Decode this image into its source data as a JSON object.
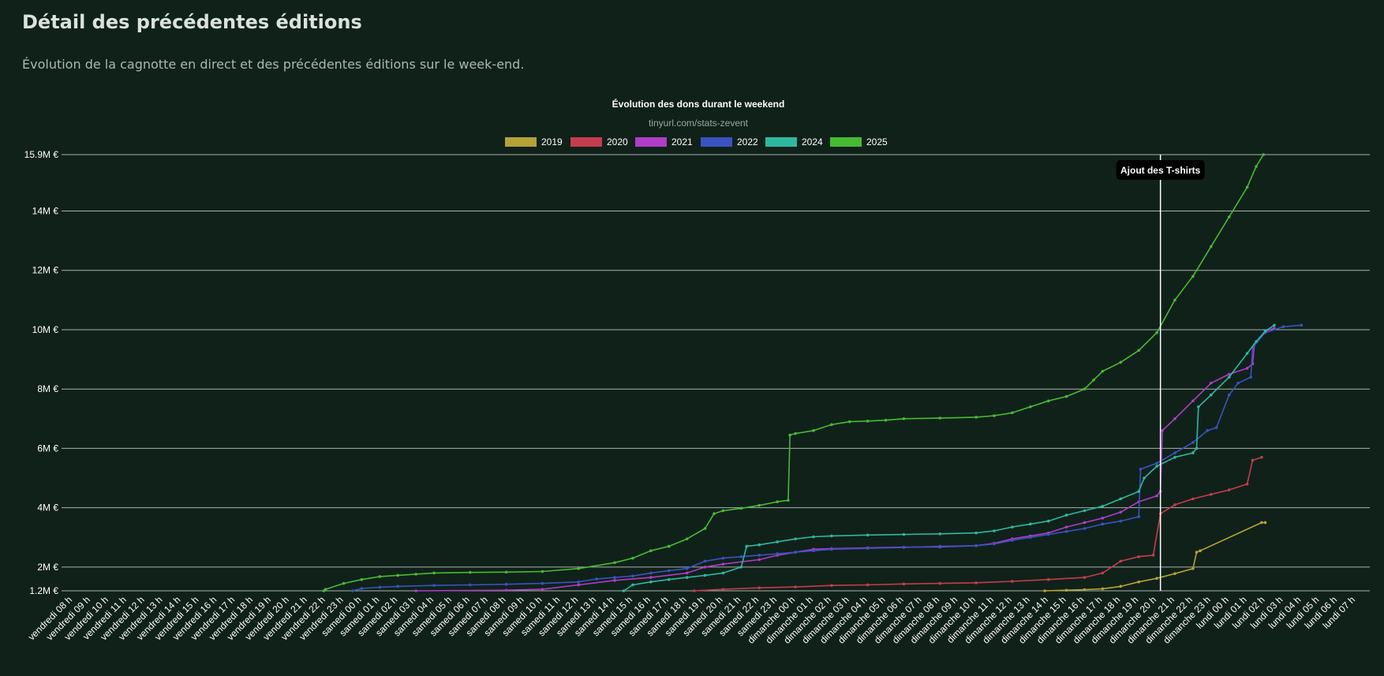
{
  "page": {
    "title": "Détail des précédentes éditions",
    "subtitle": "Évolution de la cagnotte en direct et des précédentes éditions sur le week-end."
  },
  "colors": {
    "background": "#10211a",
    "grid": "#cfd8d3",
    "text": "#ffffff",
    "annotation_line": "#ffffff",
    "annotation_box": "#000000"
  },
  "chart_data": {
    "type": "line",
    "title": "Évolution des dons durant le weekend",
    "subtitle": "tinyurl.com/stats-zevent",
    "legend_position": "top-center",
    "grid": true,
    "ylim": [
      1.2,
      15.9
    ],
    "y_ticks": [
      {
        "value": 1.2,
        "label": "1.2M €"
      },
      {
        "value": 2,
        "label": "2M €"
      },
      {
        "value": 4,
        "label": "4M €"
      },
      {
        "value": 6,
        "label": "6M €"
      },
      {
        "value": 8,
        "label": "8M €"
      },
      {
        "value": 10,
        "label": "10M €"
      },
      {
        "value": 12,
        "label": "12M €"
      },
      {
        "value": 14,
        "label": "14M €"
      },
      {
        "value": 15.9,
        "label": "15.9M €"
      }
    ],
    "x_categories": [
      "vendredi 08 h",
      "vendredi 09 h",
      "vendredi 10 h",
      "vendredi 11 h",
      "vendredi 12 h",
      "vendredi 13 h",
      "vendredi 14 h",
      "vendredi 15 h",
      "vendredi 16 h",
      "vendredi 17 h",
      "vendredi 18 h",
      "vendredi 19 h",
      "vendredi 20 h",
      "vendredi 21 h",
      "vendredi 22 h",
      "vendredi 23 h",
      "samedi 00 h",
      "samedi 01 h",
      "samedi 02 h",
      "samedi 03 h",
      "samedi 04 h",
      "samedi 05 h",
      "samedi 06 h",
      "samedi 07 h",
      "samedi 08 h",
      "samedi 09 h",
      "samedi 10 h",
      "samedi 11 h",
      "samedi 12 h",
      "samedi 13 h",
      "samedi 14 h",
      "samedi 15 h",
      "samedi 16 h",
      "samedi 17 h",
      "samedi 18 h",
      "samedi 19 h",
      "samedi 20 h",
      "samedi 21 h",
      "samedi 22 h",
      "samedi 23 h",
      "dimanche 00 h",
      "dimanche 01 h",
      "dimanche 02 h",
      "dimanche 03 h",
      "dimanche 04 h",
      "dimanche 05 h",
      "dimanche 06 h",
      "dimanche 07 h",
      "dimanche 08 h",
      "dimanche 09 h",
      "dimanche 10 h",
      "dimanche 11 h",
      "dimanche 12 h",
      "dimanche 13 h",
      "dimanche 14 h",
      "dimanche 15 h",
      "dimanche 16 h",
      "dimanche 17 h",
      "dimanche 18 h",
      "dimanche 19 h",
      "dimanche 20 h",
      "dimanche 21 h",
      "dimanche 22 h",
      "dimanche 23 h",
      "lundi 00 h",
      "lundi 01 h",
      "lundi 02 h",
      "lundi 03 h",
      "lundi 04 h",
      "lundi 05 h",
      "lundi 06 h",
      "lundi 07 h"
    ],
    "annotation": {
      "x": 60.2,
      "label": "Ajout des T-shirts"
    },
    "series": [
      {
        "name": "2019",
        "color": "#b5a236",
        "points": [
          [
            53.8,
            1.2
          ],
          [
            55,
            1.22
          ],
          [
            56,
            1.24
          ],
          [
            57,
            1.27
          ],
          [
            58,
            1.35
          ],
          [
            59,
            1.5
          ],
          [
            60,
            1.62
          ],
          [
            61,
            1.78
          ],
          [
            62,
            1.95
          ],
          [
            62.2,
            2.5
          ],
          [
            62.4,
            2.55
          ],
          [
            65.8,
            3.5
          ],
          [
            66,
            3.5
          ]
        ]
      },
      {
        "name": "2020",
        "color": "#c43c4f",
        "points": [
          [
            34.4,
            1.2
          ],
          [
            36,
            1.25
          ],
          [
            38,
            1.3
          ],
          [
            40,
            1.33
          ],
          [
            42,
            1.38
          ],
          [
            44,
            1.4
          ],
          [
            46,
            1.43
          ],
          [
            48,
            1.45
          ],
          [
            50,
            1.47
          ],
          [
            52,
            1.52
          ],
          [
            54,
            1.58
          ],
          [
            56,
            1.65
          ],
          [
            57,
            1.8
          ],
          [
            58,
            2.2
          ],
          [
            59,
            2.35
          ],
          [
            59.8,
            2.4
          ],
          [
            60.2,
            3.8
          ],
          [
            61,
            4.1
          ],
          [
            62,
            4.3
          ],
          [
            63,
            4.45
          ],
          [
            64,
            4.6
          ],
          [
            65,
            4.8
          ],
          [
            65.3,
            5.6
          ],
          [
            65.8,
            5.7
          ]
        ]
      },
      {
        "name": "2021",
        "color": "#b03cc8",
        "points": [
          [
            19,
            1.2
          ],
          [
            24,
            1.22
          ],
          [
            26,
            1.25
          ],
          [
            28,
            1.4
          ],
          [
            30,
            1.55
          ],
          [
            32,
            1.65
          ],
          [
            34,
            1.8
          ],
          [
            35,
            2.0
          ],
          [
            36,
            2.1
          ],
          [
            38,
            2.25
          ],
          [
            39,
            2.4
          ],
          [
            40,
            2.5
          ],
          [
            41,
            2.6
          ],
          [
            42,
            2.62
          ],
          [
            44,
            2.65
          ],
          [
            46,
            2.67
          ],
          [
            48,
            2.68
          ],
          [
            50,
            2.72
          ],
          [
            51,
            2.8
          ],
          [
            52,
            2.95
          ],
          [
            53,
            3.05
          ],
          [
            54,
            3.15
          ],
          [
            55,
            3.35
          ],
          [
            56,
            3.5
          ],
          [
            57,
            3.65
          ],
          [
            58,
            3.85
          ],
          [
            59,
            4.2
          ],
          [
            60,
            4.4
          ],
          [
            60.2,
            4.55
          ],
          [
            60.3,
            6.6
          ],
          [
            61,
            7.0
          ],
          [
            62,
            7.6
          ],
          [
            63,
            8.2
          ],
          [
            64,
            8.5
          ],
          [
            65,
            8.7
          ],
          [
            65.3,
            8.85
          ],
          [
            65.4,
            9.5
          ],
          [
            66,
            9.95
          ],
          [
            66.5,
            10.05
          ]
        ]
      },
      {
        "name": "2022",
        "color": "#3a53c0",
        "points": [
          [
            15.5,
            1.2
          ],
          [
            16,
            1.28
          ],
          [
            17,
            1.32
          ],
          [
            18,
            1.35
          ],
          [
            20,
            1.38
          ],
          [
            22,
            1.4
          ],
          [
            24,
            1.42
          ],
          [
            26,
            1.45
          ],
          [
            28,
            1.5
          ],
          [
            29,
            1.6
          ],
          [
            30,
            1.65
          ],
          [
            31,
            1.7
          ],
          [
            32,
            1.8
          ],
          [
            33,
            1.88
          ],
          [
            34,
            1.95
          ],
          [
            35,
            2.2
          ],
          [
            36,
            2.3
          ],
          [
            37,
            2.35
          ],
          [
            38,
            2.4
          ],
          [
            39,
            2.45
          ],
          [
            40,
            2.5
          ],
          [
            41,
            2.55
          ],
          [
            42,
            2.6
          ],
          [
            44,
            2.63
          ],
          [
            46,
            2.66
          ],
          [
            48,
            2.7
          ],
          [
            50,
            2.72
          ],
          [
            51,
            2.78
          ],
          [
            52,
            2.9
          ],
          [
            53,
            3.0
          ],
          [
            54,
            3.1
          ],
          [
            55,
            3.2
          ],
          [
            56,
            3.3
          ],
          [
            57,
            3.45
          ],
          [
            58,
            3.55
          ],
          [
            59,
            3.7
          ],
          [
            59.1,
            5.3
          ],
          [
            60,
            5.5
          ],
          [
            61,
            5.85
          ],
          [
            62,
            6.2
          ],
          [
            62.8,
            6.6
          ],
          [
            63.3,
            6.7
          ],
          [
            64,
            7.8
          ],
          [
            64.5,
            8.2
          ],
          [
            65.2,
            8.4
          ],
          [
            65.3,
            9.4
          ],
          [
            66,
            9.9
          ],
          [
            67,
            10.1
          ],
          [
            68,
            10.15
          ]
        ]
      },
      {
        "name": "2024",
        "color": "#2eb8a0",
        "points": [
          [
            30.5,
            1.2
          ],
          [
            31,
            1.4
          ],
          [
            32,
            1.5
          ],
          [
            33,
            1.58
          ],
          [
            34,
            1.65
          ],
          [
            35,
            1.72
          ],
          [
            36,
            1.8
          ],
          [
            37,
            2.0
          ],
          [
            37.3,
            2.7
          ],
          [
            38,
            2.75
          ],
          [
            39,
            2.85
          ],
          [
            40,
            2.95
          ],
          [
            41,
            3.02
          ],
          [
            42,
            3.05
          ],
          [
            44,
            3.08
          ],
          [
            46,
            3.1
          ],
          [
            48,
            3.12
          ],
          [
            50,
            3.15
          ],
          [
            51,
            3.22
          ],
          [
            52,
            3.35
          ],
          [
            53,
            3.45
          ],
          [
            54,
            3.55
          ],
          [
            55,
            3.75
          ],
          [
            56,
            3.9
          ],
          [
            57,
            4.05
          ],
          [
            58,
            4.3
          ],
          [
            59,
            4.55
          ],
          [
            59.3,
            5.0
          ],
          [
            60,
            5.4
          ],
          [
            61,
            5.7
          ],
          [
            62,
            5.85
          ],
          [
            62.2,
            6.0
          ],
          [
            62.3,
            7.4
          ],
          [
            63,
            7.8
          ],
          [
            64,
            8.4
          ],
          [
            65,
            9.2
          ],
          [
            65.5,
            9.6
          ],
          [
            66,
            9.95
          ],
          [
            66.5,
            10.15
          ]
        ]
      },
      {
        "name": "2025",
        "color": "#47bb32",
        "points": [
          [
            13.9,
            1.2
          ],
          [
            14,
            1.25
          ],
          [
            15,
            1.45
          ],
          [
            16,
            1.58
          ],
          [
            17,
            1.68
          ],
          [
            18,
            1.72
          ],
          [
            19,
            1.76
          ],
          [
            20,
            1.8
          ],
          [
            22,
            1.82
          ],
          [
            24,
            1.83
          ],
          [
            26,
            1.85
          ],
          [
            28,
            1.95
          ],
          [
            30,
            2.15
          ],
          [
            31,
            2.3
          ],
          [
            32,
            2.55
          ],
          [
            33,
            2.7
          ],
          [
            34,
            2.95
          ],
          [
            35,
            3.3
          ],
          [
            35.5,
            3.8
          ],
          [
            36,
            3.9
          ],
          [
            37,
            3.98
          ],
          [
            38,
            4.08
          ],
          [
            39,
            4.2
          ],
          [
            39.6,
            4.25
          ],
          [
            39.7,
            6.45
          ],
          [
            40,
            6.5
          ],
          [
            41,
            6.6
          ],
          [
            42,
            6.8
          ],
          [
            43,
            6.9
          ],
          [
            44,
            6.92
          ],
          [
            45,
            6.95
          ],
          [
            46,
            7.0
          ],
          [
            48,
            7.02
          ],
          [
            50,
            7.05
          ],
          [
            51,
            7.1
          ],
          [
            52,
            7.2
          ],
          [
            53,
            7.4
          ],
          [
            54,
            7.6
          ],
          [
            55,
            7.75
          ],
          [
            56,
            8.0
          ],
          [
            56.5,
            8.3
          ],
          [
            57,
            8.6
          ],
          [
            58,
            8.9
          ],
          [
            59,
            9.3
          ],
          [
            60,
            9.9
          ],
          [
            61,
            11.0
          ],
          [
            62,
            11.8
          ],
          [
            63,
            12.8
          ],
          [
            64,
            13.8
          ],
          [
            65,
            14.8
          ],
          [
            65.5,
            15.5
          ],
          [
            65.9,
            15.95
          ]
        ]
      }
    ]
  }
}
